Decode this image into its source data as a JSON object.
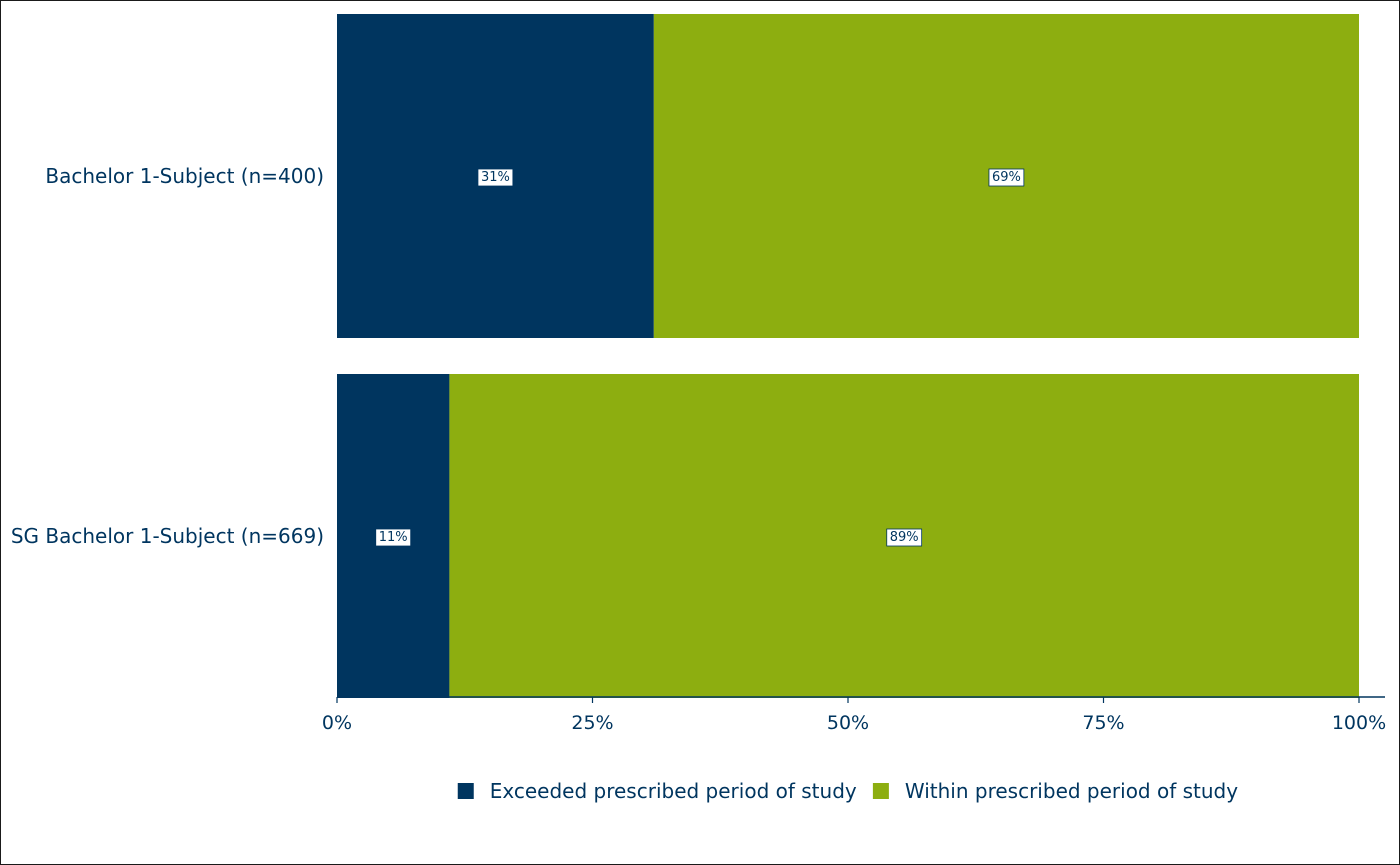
{
  "chart_data": {
    "type": "bar",
    "orientation": "horizontal",
    "stacked": true,
    "title": "",
    "xlabel": "",
    "ylabel": "",
    "xlim": [
      0,
      100
    ],
    "categories": [
      "Bachelor 1-Subject (n=400)",
      "SG Bachelor 1-Subject (n=669)"
    ],
    "series": [
      {
        "name": "Exceeded prescribed period of study",
        "values": [
          31,
          11
        ],
        "labels": [
          "31%",
          "11%"
        ],
        "color": "#00355f"
      },
      {
        "name": "Within prescribed period of study",
        "values": [
          69,
          89
        ],
        "labels": [
          "69%",
          "89%"
        ],
        "color": "#8dae10"
      }
    ],
    "x_ticks": [
      0,
      25,
      50,
      75,
      100
    ],
    "x_tick_labels": [
      "0%",
      "25%",
      "50%",
      "75%",
      "100%"
    ],
    "grid": false,
    "legend_position": "bottom",
    "axis_color": "#00355f",
    "text_color": "#00355f"
  }
}
